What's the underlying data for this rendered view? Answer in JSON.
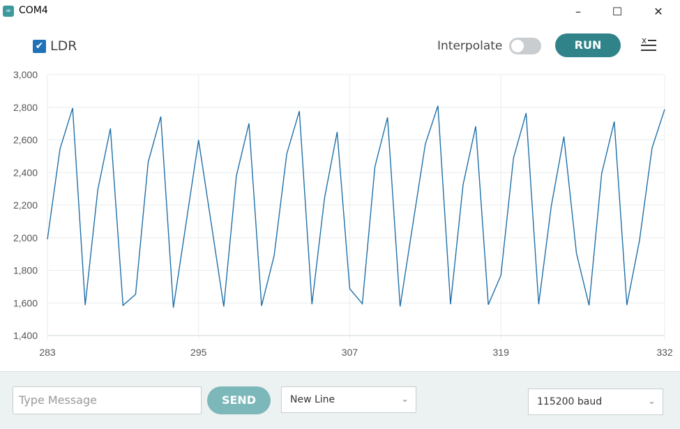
{
  "window": {
    "title": "COM4",
    "minimize": "–",
    "maximize": "☐",
    "close": "✕"
  },
  "toolbar": {
    "series_label": "LDR",
    "series_checked": true,
    "interpolate_label": "Interpolate",
    "interpolate_on": false,
    "run_label": "RUN",
    "clear_icon": "clear-list-icon"
  },
  "colors": {
    "series": "#1f6fa8",
    "run": "#2f8389",
    "send": "#7cb7b9",
    "checkbox": "#1f72b8"
  },
  "chart_data": {
    "type": "line",
    "x": [
      283,
      284,
      285,
      286,
      287,
      288,
      289,
      290,
      291,
      292,
      293,
      294,
      295,
      296,
      297,
      298,
      299,
      300,
      301,
      302,
      303,
      304,
      305,
      306,
      307,
      308,
      309,
      310,
      311,
      312,
      313,
      314,
      315,
      316,
      317,
      318,
      319,
      320,
      321,
      322,
      323,
      324,
      325,
      326,
      327,
      328,
      329,
      330,
      331,
      332
    ],
    "series": [
      {
        "name": "LDR",
        "values": [
          1990,
          2545,
          2795,
          1587,
          2294,
          2670,
          1585,
          1653,
          2464,
          2743,
          1571,
          2085,
          2599,
          2090,
          1578,
          2379,
          2701,
          1582,
          1890,
          2514,
          2776,
          1592,
          2244,
          2648,
          1687,
          1595,
          2436,
          2738,
          1578,
          2077,
          2574,
          2809,
          1592,
          2326,
          2683,
          1589,
          1769,
          2489,
          2764,
          1592,
          2194,
          2620,
          1904,
          1585,
          2393,
          2712,
          1587,
          1982,
          2550,
          2787
        ]
      }
    ],
    "xlim": [
      283,
      332
    ],
    "ylim": [
      1400,
      3000
    ],
    "xticks": [
      "283",
      "295",
      "307",
      "319",
      "332"
    ],
    "yticks": [
      "3,000",
      "2,800",
      "2,600",
      "2,400",
      "2,200",
      "2,000",
      "1,800",
      "1,600",
      "1,400"
    ],
    "grid": true
  },
  "footer": {
    "message_placeholder": "Type Message",
    "send_label": "SEND",
    "line_ending": "New Line",
    "baud": "115200 baud"
  }
}
